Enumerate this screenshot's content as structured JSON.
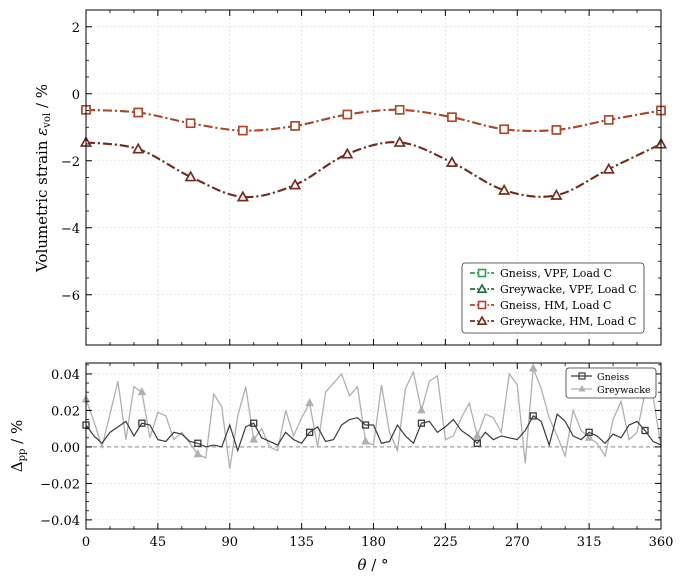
{
  "chart_data": [
    {
      "type": "line",
      "ylabel": "Volumetric strain ε_vol / %",
      "ylabel_main": "Volumetric strain ",
      "ylabel_sym": "ε",
      "ylabel_sub": "vol",
      "ylabel_tail": " / %",
      "ylim": [
        -7.5,
        2.5
      ],
      "xlim": [
        0,
        360
      ],
      "yticks": [
        2,
        0,
        -2,
        -4,
        -6
      ],
      "ytick_labels": [
        "2",
        "0",
        "−2",
        "−4",
        "−6"
      ],
      "grid": true,
      "legend_position": "bottom-right",
      "series": [
        {
          "name": "Gneiss, VPF, Load C",
          "color": "#2e9e57",
          "marker": "square",
          "linestyle": "dash-dot",
          "x": [
            0,
            32.7,
            65.5,
            98.2,
            130.9,
            163.6,
            196.4,
            229.1,
            261.8,
            294.5,
            327.3,
            360
          ],
          "values": [
            -0.48,
            -0.56,
            -0.88,
            -1.1,
            -0.96,
            -0.62,
            -0.48,
            -0.7,
            -1.06,
            -1.08,
            -0.78,
            -0.5
          ]
        },
        {
          "name": "Greywacke, VPF, Load C",
          "color": "#1f6e3a",
          "marker": "triangle",
          "linestyle": "dash-dot",
          "x": [
            0,
            32.7,
            65.5,
            98.2,
            130.9,
            163.6,
            196.4,
            229.1,
            261.8,
            294.5,
            327.3,
            360
          ],
          "values": [
            -1.45,
            -1.65,
            -2.48,
            -3.08,
            -2.72,
            -1.8,
            -1.45,
            -2.05,
            -2.88,
            -3.03,
            -2.25,
            -1.5
          ]
        },
        {
          "name": "Gneiss, HM, Load C",
          "color": "#b5432a",
          "marker": "square",
          "linestyle": "dash-dot",
          "x": [
            0,
            32.7,
            65.5,
            98.2,
            130.9,
            163.6,
            196.4,
            229.1,
            261.8,
            294.5,
            327.3,
            360
          ],
          "values": [
            -0.48,
            -0.56,
            -0.88,
            -1.1,
            -0.96,
            -0.62,
            -0.48,
            -0.7,
            -1.06,
            -1.08,
            -0.78,
            -0.5
          ]
        },
        {
          "name": "Greywacke, HM, Load C",
          "color": "#7a2a1c",
          "marker": "triangle",
          "linestyle": "dash-dot",
          "x": [
            0,
            32.7,
            65.5,
            98.2,
            130.9,
            163.6,
            196.4,
            229.1,
            261.8,
            294.5,
            327.3,
            360
          ],
          "values": [
            -1.45,
            -1.65,
            -2.48,
            -3.08,
            -2.72,
            -1.8,
            -1.45,
            -2.05,
            -2.88,
            -3.03,
            -2.25,
            -1.5
          ]
        }
      ]
    },
    {
      "type": "line",
      "xlabel": "θ / °",
      "xlabel_sym": "θ",
      "xlabel_tail": " / °",
      "ylabel": "Δ_pp / %",
      "ylabel_sym": "Δ",
      "ylabel_sub": "pp",
      "ylabel_tail": " / %",
      "xlim": [
        0,
        360
      ],
      "ylim": [
        -0.045,
        0.046
      ],
      "xticks": [
        0,
        45,
        90,
        135,
        180,
        225,
        270,
        315,
        360
      ],
      "xtick_labels": [
        "0",
        "45",
        "90",
        "135",
        "180",
        "225",
        "270",
        "315",
        "360"
      ],
      "yticks": [
        0.04,
        0.02,
        0.0,
        -0.02,
        -0.04
      ],
      "ytick_labels": [
        "0.04",
        "0.02",
        "0.00",
        "−0.02",
        "−0.04"
      ],
      "reference_line": 0.0,
      "grid": true,
      "legend_position": "top-right",
      "series": [
        {
          "name": "Gneiss",
          "color": "#3a3a3a",
          "marker": "square",
          "x": [
            0,
            5,
            10,
            15,
            20,
            25,
            30,
            35,
            40,
            45,
            50,
            55,
            60,
            65,
            70,
            75,
            80,
            85,
            90,
            95,
            100,
            105,
            110,
            115,
            120,
            125,
            130,
            135,
            140,
            145,
            150,
            155,
            160,
            165,
            170,
            175,
            180,
            185,
            190,
            195,
            200,
            205,
            210,
            215,
            220,
            225,
            230,
            235,
            240,
            245,
            250,
            255,
            260,
            265,
            270,
            275,
            280,
            285,
            290,
            295,
            300,
            305,
            310,
            315,
            320,
            325,
            330,
            335,
            340,
            345,
            350,
            355,
            360
          ],
          "values": [
            0.012,
            0.006,
            0.002,
            0.008,
            0.011,
            0.014,
            0.006,
            0.013,
            0.012,
            0.004,
            0.003,
            0.008,
            0.007,
            0.003,
            0.002,
            0.0,
            0.001,
            0.0,
            0.012,
            -0.002,
            0.011,
            0.013,
            0.005,
            0.003,
            0.001,
            0.008,
            0.004,
            0.002,
            0.008,
            0.011,
            0.003,
            0.004,
            0.012,
            0.015,
            0.016,
            0.012,
            0.012,
            0.002,
            0.003,
            0.012,
            0.006,
            0.002,
            0.013,
            0.014,
            0.008,
            0.011,
            0.015,
            0.009,
            0.006,
            0.002,
            0.008,
            0.004,
            0.006,
            0.005,
            0.004,
            0.009,
            0.017,
            0.014,
            0.001,
            0.018,
            0.014,
            0.006,
            0.004,
            0.008,
            0.006,
            0.002,
            0.007,
            0.005,
            0.012,
            0.014,
            0.009,
            0.003,
            0.001
          ]
        },
        {
          "name": "Greywacke",
          "color": "#b0b0b0",
          "marker": "triangle",
          "x": [
            0,
            5,
            10,
            15,
            20,
            25,
            30,
            35,
            40,
            45,
            50,
            55,
            60,
            65,
            70,
            75,
            80,
            85,
            90,
            95,
            100,
            105,
            110,
            115,
            120,
            125,
            130,
            135,
            140,
            145,
            150,
            155,
            160,
            165,
            170,
            175,
            180,
            185,
            190,
            195,
            200,
            205,
            210,
            215,
            220,
            225,
            230,
            235,
            240,
            245,
            250,
            255,
            260,
            265,
            270,
            275,
            280,
            285,
            290,
            295,
            300,
            305,
            310,
            315,
            320,
            325,
            330,
            335,
            340,
            345,
            350,
            355,
            360
          ],
          "values": [
            0.026,
            0.014,
            0.0,
            0.018,
            0.036,
            0.004,
            0.033,
            0.03,
            0.005,
            0.019,
            0.017,
            0.004,
            0.008,
            0.002,
            -0.004,
            -0.006,
            0.029,
            0.022,
            -0.012,
            0.017,
            0.033,
            0.004,
            0.01,
            0.0,
            -0.002,
            0.02,
            0.006,
            0.016,
            0.024,
            0.0,
            0.03,
            0.035,
            0.04,
            0.028,
            0.033,
            0.003,
            0.001,
            0.034,
            0.008,
            -0.002,
            0.032,
            0.041,
            0.02,
            0.036,
            0.039,
            0.004,
            0.006,
            0.016,
            0.024,
            0.006,
            0.018,
            0.016,
            0.008,
            0.04,
            0.034,
            -0.009,
            0.043,
            0.032,
            0.016,
            0.006,
            -0.005,
            0.02,
            0.009,
            0.005,
            0.002,
            -0.005,
            0.015,
            0.025,
            0.004,
            0.008,
            0.03,
            0.028,
            0.0
          ]
        }
      ]
    }
  ]
}
